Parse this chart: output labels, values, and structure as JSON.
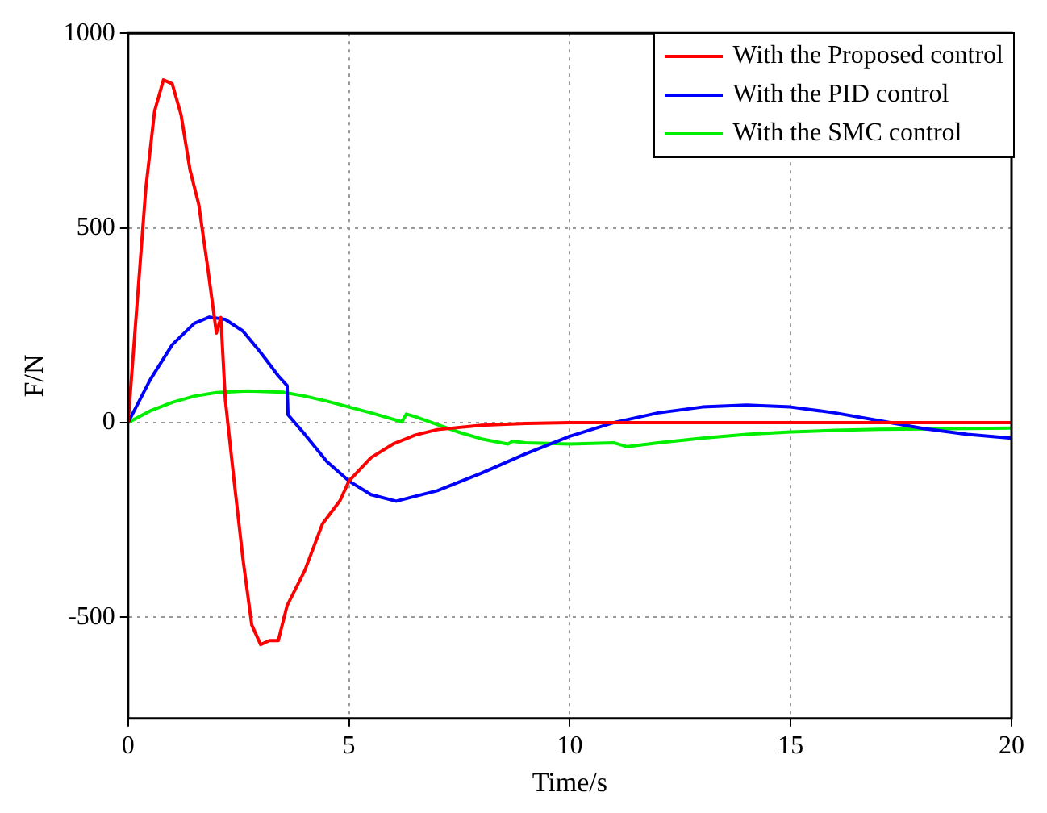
{
  "chart_data": {
    "type": "line",
    "xlabel": "Time/s",
    "ylabel": "F/N",
    "xlim": [
      0,
      20
    ],
    "xticks": [
      0,
      5,
      10,
      15,
      20
    ],
    "ylim": [
      -760,
      1000
    ],
    "yticks": [
      -500,
      0,
      500,
      1000
    ],
    "grid": true,
    "legend": "top right",
    "marker": "none",
    "line_style": "solid",
    "series": [
      {
        "name": "With the Proposed control",
        "color": "#ff0000",
        "x": [
          0,
          0.2,
          0.4,
          0.6,
          0.8,
          1.0,
          1.2,
          1.4,
          1.6,
          1.8,
          2.0,
          2.1,
          2.2,
          2.4,
          2.6,
          2.8,
          3.0,
          3.2,
          3.4,
          3.6,
          4.0,
          4.4,
          4.8,
          5.0,
          5.5,
          6,
          6.5,
          7,
          8,
          9,
          10,
          20
        ],
        "values": [
          0,
          300,
          600,
          800,
          880,
          870,
          790,
          650,
          560,
          400,
          230,
          270,
          60,
          -150,
          -350,
          -520,
          -570,
          -560,
          -560,
          -470,
          -380,
          -260,
          -200,
          -150,
          -90,
          -55,
          -32,
          -18,
          -7,
          -2,
          0,
          0
        ]
      },
      {
        "name": "With the PID control",
        "color": "#0000ff",
        "x": [
          0,
          0.5,
          1,
          1.5,
          1.84,
          2.2,
          2.6,
          3.0,
          3.4,
          3.6,
          3.62,
          4,
          4.5,
          5,
          5.5,
          6.07,
          6.3,
          7,
          8,
          9,
          10,
          11,
          12,
          13,
          14,
          15,
          16,
          17,
          18,
          19,
          20
        ],
        "values": [
          0,
          110,
          200,
          255,
          271,
          265,
          235,
          180,
          120,
          95,
          20,
          -30,
          -100,
          -150,
          -185,
          -202,
          -195,
          -175,
          -130,
          -80,
          -35,
          0,
          25,
          40,
          45,
          40,
          25,
          5,
          -15,
          -30,
          -40
        ]
      },
      {
        "name": "With the SMC control",
        "color": "#00ee00",
        "x": [
          0,
          0.5,
          1,
          1.5,
          2,
          2.7,
          3.5,
          4,
          4.5,
          5,
          5.5,
          6.2,
          6.3,
          6.5,
          7,
          7.5,
          8,
          8.6,
          8.7,
          9,
          10,
          11,
          11.3,
          12,
          13,
          14,
          15,
          16,
          17,
          18,
          20
        ],
        "values": [
          0,
          30,
          52,
          68,
          77,
          81,
          78,
          68,
          55,
          40,
          25,
          2,
          22,
          15,
          -5,
          -25,
          -42,
          -55,
          -48,
          -52,
          -55,
          -52,
          -62,
          -52,
          -40,
          -30,
          -24,
          -20,
          -17,
          -16,
          -14
        ]
      }
    ]
  }
}
